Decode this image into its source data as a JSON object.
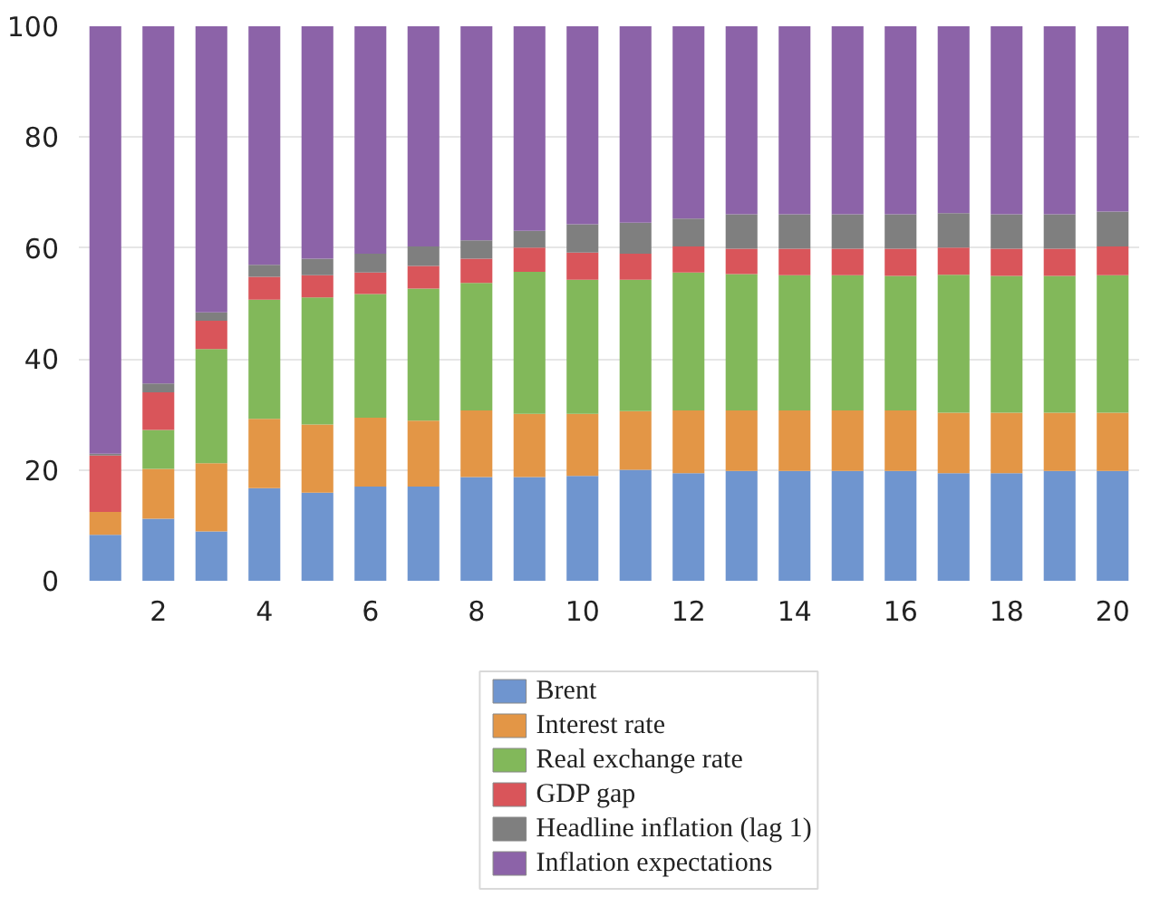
{
  "chart_data": {
    "type": "bar",
    "stacked": true,
    "x": [
      1,
      2,
      3,
      4,
      5,
      6,
      7,
      8,
      9,
      10,
      11,
      12,
      13,
      14,
      15,
      16,
      17,
      18,
      19,
      20
    ],
    "xlim": [
      0.5,
      20.5
    ],
    "xticks": [
      2,
      4,
      6,
      8,
      10,
      12,
      14,
      16,
      18,
      20
    ],
    "ylim": [
      0,
      100
    ],
    "yticks": [
      0,
      20,
      40,
      60,
      80,
      100
    ],
    "grid": "y",
    "legend": "bottom",
    "series": [
      {
        "name": "Brent",
        "color": "#6f95cf",
        "values": [
          8.3,
          11.2,
          8.9,
          16.7,
          15.9,
          17.0,
          17.0,
          18.7,
          18.7,
          18.9,
          20.0,
          19.4,
          19.8,
          19.8,
          19.8,
          19.8,
          19.4,
          19.4,
          19.8,
          19.8
        ]
      },
      {
        "name": "Interest rate",
        "color": "#e39646",
        "values": [
          4.1,
          9.0,
          12.3,
          12.5,
          12.3,
          12.4,
          11.9,
          12.0,
          11.4,
          11.2,
          10.6,
          11.3,
          10.9,
          10.9,
          10.9,
          10.9,
          10.9,
          10.9,
          10.5,
          10.5
        ]
      },
      {
        "name": "Real exchange rate",
        "color": "#82b85a",
        "values": [
          null,
          7.0,
          20.6,
          21.5,
          22.9,
          22.3,
          23.8,
          23.0,
          25.6,
          24.2,
          23.7,
          24.9,
          24.6,
          24.4,
          24.4,
          24.3,
          24.9,
          24.7,
          24.7,
          24.8
        ]
      },
      {
        "name": "GDP gap",
        "color": "#d9555a",
        "values": [
          10.2,
          6.8,
          5.1,
          4.1,
          4.0,
          3.9,
          4.1,
          4.4,
          4.4,
          4.9,
          4.7,
          4.7,
          4.6,
          4.8,
          4.8,
          4.9,
          4.9,
          4.9,
          4.9,
          5.2
        ]
      },
      {
        "name": "Headline inflation (lag 1)",
        "color": "#7f7f7f",
        "values": [
          0.3,
          1.6,
          1.5,
          2.2,
          3.0,
          3.4,
          3.5,
          3.3,
          3.0,
          5.1,
          5.6,
          5.0,
          6.2,
          6.2,
          6.2,
          6.2,
          6.2,
          6.2,
          6.2,
          6.3
        ]
      },
      {
        "name": "Inflation expectations",
        "color": "#8c63a8",
        "values": [
          77.1,
          64.4,
          51.6,
          43.0,
          41.9,
          41.0,
          39.7,
          38.6,
          36.9,
          35.7,
          35.4,
          34.7,
          33.9,
          33.9,
          33.9,
          33.9,
          33.7,
          33.9,
          33.9,
          33.4
        ]
      }
    ]
  }
}
